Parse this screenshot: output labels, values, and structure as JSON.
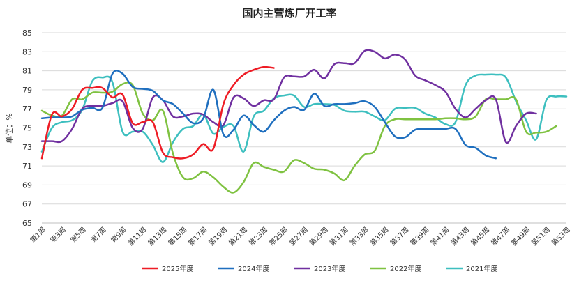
{
  "chart_data": {
    "type": "line",
    "title": "国内主营炼厂开工率",
    "ylabel": "单位：%",
    "xlabel": "",
    "ylim": [
      65,
      85
    ],
    "yticks": [
      65,
      67,
      69,
      71,
      73,
      75,
      77,
      79,
      81,
      83,
      85
    ],
    "x_count": 53,
    "x_tick_labels": [
      "第1周",
      "第3周",
      "第5周",
      "第7周",
      "第9周",
      "第11周",
      "第13周",
      "第15周",
      "第17周",
      "第19周",
      "第21周",
      "第23周",
      "第25周",
      "第27周",
      "第29周",
      "第31周",
      "第33周",
      "第35周",
      "第37周",
      "第39周",
      "第41周",
      "第43周",
      "第45周",
      "第47周",
      "第49周",
      "第51周",
      "第53周"
    ],
    "x_tick_weeks": [
      1,
      3,
      5,
      7,
      9,
      11,
      13,
      15,
      17,
      19,
      21,
      23,
      25,
      27,
      29,
      31,
      33,
      35,
      37,
      39,
      41,
      43,
      45,
      47,
      49,
      51,
      53
    ],
    "grid": true,
    "legend_position": "bottom",
    "series": [
      {
        "name": "2025年度",
        "color": "#ee1c25",
        "values": [
          71.8,
          76.4,
          76.2,
          77.0,
          79.0,
          79.2,
          79.2,
          78.2,
          78.5,
          75.5,
          75.6,
          75.6,
          72.4,
          71.9,
          71.8,
          72.2,
          73.3,
          72.8,
          77.5,
          79.5,
          80.6,
          81.1,
          81.4,
          81.3
        ]
      },
      {
        "name": "2024年度",
        "color": "#1f6fbf",
        "values": [
          76.0,
          76.1,
          76.1,
          76.2,
          76.9,
          77.1,
          77.1,
          80.7,
          80.7,
          79.3,
          79.1,
          78.9,
          77.9,
          77.5,
          76.5,
          75.5,
          76.0,
          79.0,
          74.3,
          74.8,
          76.3,
          75.3,
          74.6,
          75.8,
          76.8,
          77.2,
          76.9,
          78.6,
          77.3,
          77.5,
          77.5,
          77.6,
          77.8,
          77.2,
          75.6,
          74.1,
          74.0,
          74.8,
          74.9,
          74.9,
          74.9,
          74.9,
          73.2,
          72.9,
          72.1,
          71.8
        ]
      },
      {
        "name": "2023年度",
        "color": "#7030a0",
        "values": [
          73.6,
          73.6,
          73.6,
          74.9,
          77.0,
          77.3,
          77.3,
          77.6,
          77.8,
          75.0,
          74.9,
          78.2,
          77.9,
          76.2,
          76.2,
          76.5,
          76.4,
          75.6,
          75.3,
          78.2,
          78.1,
          77.3,
          77.9,
          78.0,
          80.3,
          80.4,
          80.4,
          81.1,
          80.2,
          81.7,
          81.8,
          81.8,
          83.1,
          83.0,
          82.3,
          82.7,
          82.2,
          80.5,
          80.0,
          79.5,
          78.8,
          77.0,
          76.1,
          77.0,
          77.9,
          78.0,
          73.5,
          75.2,
          76.5,
          76.5
        ]
      },
      {
        "name": "2022年度",
        "color": "#7fc241",
        "values": [
          76.8,
          76.3,
          76.3,
          78.0,
          78.0,
          78.7,
          78.7,
          78.8,
          79.6,
          79.5,
          76.5,
          75.8,
          76.8,
          72.3,
          69.8,
          69.7,
          70.4,
          69.8,
          68.8,
          68.2,
          69.3,
          71.3,
          70.9,
          70.6,
          70.4,
          71.6,
          71.3,
          70.7,
          70.6,
          70.2,
          69.5,
          71.0,
          72.2,
          72.6,
          75.2,
          75.9,
          75.9,
          75.9,
          75.9,
          75.9,
          76.0,
          76.0,
          75.9,
          76.2,
          78.0,
          78.0,
          78.0,
          78.0,
          74.6,
          74.5,
          74.6,
          75.2
        ]
      },
      {
        "name": "2021年度",
        "color": "#3dbfbf",
        "values": [
          72.5,
          75.0,
          75.6,
          75.8,
          76.9,
          79.9,
          80.3,
          79.8,
          74.6,
          74.6,
          74.6,
          73.2,
          71.4,
          73.5,
          74.9,
          75.2,
          76.4,
          74.4,
          75.1,
          75.2,
          72.5,
          76.2,
          76.8,
          78.1,
          78.4,
          78.4,
          77.2,
          77.5,
          77.5,
          77.4,
          76.8,
          76.7,
          76.7,
          76.2,
          75.8,
          77.0,
          77.1,
          77.1,
          76.5,
          76.1,
          75.4,
          75.6,
          79.5,
          80.5,
          80.6,
          80.6,
          80.3,
          77.8,
          75.8,
          73.8,
          77.9,
          78.3,
          78.3
        ]
      }
    ]
  }
}
